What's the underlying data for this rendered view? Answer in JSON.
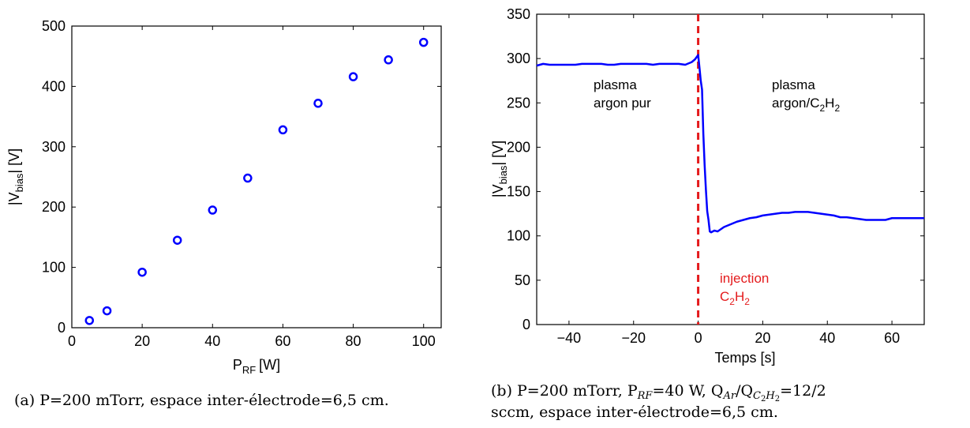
{
  "chart_data": [
    {
      "type": "scatter",
      "title": "",
      "xlabel": {
        "main": "P",
        "sub": "RF",
        "unit": "[W]"
      },
      "ylabel": {
        "pre": "|V",
        "sub": "bias",
        "post": "| [V]"
      },
      "xlim": [
        0,
        105
      ],
      "ylim": [
        0,
        500
      ],
      "xticks": [
        0,
        20,
        40,
        60,
        80,
        100
      ],
      "yticks": [
        0,
        100,
        200,
        300,
        400,
        500
      ],
      "marker": "circle",
      "color": "#0000ff",
      "series": [
        {
          "x": [
            5,
            10,
            20,
            30,
            40,
            50,
            60,
            70,
            80,
            90,
            100
          ],
          "y": [
            12,
            28,
            92,
            145,
            195,
            248,
            328,
            372,
            416,
            444,
            473
          ]
        }
      ],
      "caption": "(a) P=200 mTorr, espace inter-électrode=6,5 cm."
    },
    {
      "type": "line",
      "title": "",
      "xlabel": {
        "main": "Temps [s]"
      },
      "ylabel": {
        "pre": "|V",
        "sub": "bias",
        "post": "| [V]"
      },
      "xlim": [
        -50,
        70
      ],
      "ylim": [
        0,
        350
      ],
      "xticks": [
        -40,
        -20,
        0,
        20,
        40,
        60
      ],
      "xtick_labels": [
        "−40",
        "−20",
        "0",
        "20",
        "40",
        "60"
      ],
      "yticks": [
        0,
        50,
        100,
        150,
        200,
        250,
        300,
        350
      ],
      "color": "#0000ff",
      "series": [
        {
          "x": [
            -50,
            -48,
            -46,
            -44,
            -42,
            -40,
            -38,
            -36,
            -34,
            -32,
            -30,
            -28,
            -26,
            -24,
            -22,
            -20,
            -18,
            -16,
            -14,
            -12,
            -10,
            -8,
            -6,
            -4,
            -2,
            -1,
            0,
            0.4,
            0.8,
            1.2,
            1.6,
            2.0,
            2.4,
            2.8,
            3.2,
            3.6,
            4,
            5,
            6,
            8,
            10,
            12,
            14,
            16,
            18,
            20,
            22,
            24,
            26,
            28,
            30,
            32,
            34,
            36,
            38,
            40,
            42,
            44,
            46,
            48,
            50,
            52,
            54,
            56,
            58,
            60,
            62,
            64,
            66,
            68,
            70
          ],
          "y": [
            292,
            294,
            293,
            293,
            293,
            293,
            293,
            294,
            294,
            294,
            294,
            293,
            293,
            294,
            294,
            294,
            294,
            294,
            293,
            294,
            294,
            294,
            294,
            293,
            296,
            299,
            304,
            290,
            275,
            265,
            215,
            180,
            152,
            128,
            118,
            105,
            104,
            106,
            105,
            110,
            113,
            116,
            118,
            120,
            121,
            123,
            124,
            125,
            126,
            126,
            127,
            127,
            127,
            126,
            125,
            124,
            123,
            121,
            121,
            120,
            119,
            118,
            118,
            118,
            118,
            120,
            120,
            120,
            120,
            120,
            120
          ]
        }
      ],
      "event_line": {
        "x": 0,
        "color": "#e41a1c"
      },
      "annotations": {
        "left": {
          "line1": "plasma",
          "line2": "argon pur"
        },
        "right": {
          "line1": "plasma",
          "line2_pre": "argon/C",
          "sub1": "2",
          "mid": "H",
          "sub2": "2"
        },
        "injection": {
          "line1": "injection",
          "pre": "C",
          "sub1": "2",
          "mid": "H",
          "sub2": "2"
        }
      },
      "caption": {
        "line1_a": "(b) P=200 mTorr, P",
        "line1_sub1": "RF",
        "line1_b": "=40 W, Q",
        "line1_sub2": "Ar",
        "line1_c": "/Q",
        "line1_sub3": "C",
        "line1_subsub3": "2",
        "line1_sub3b": "H",
        "line1_subsub3b": "2",
        "line1_d": "=12/2",
        "line2": "sccm, espace inter-électrode=6,5 cm."
      }
    }
  ]
}
